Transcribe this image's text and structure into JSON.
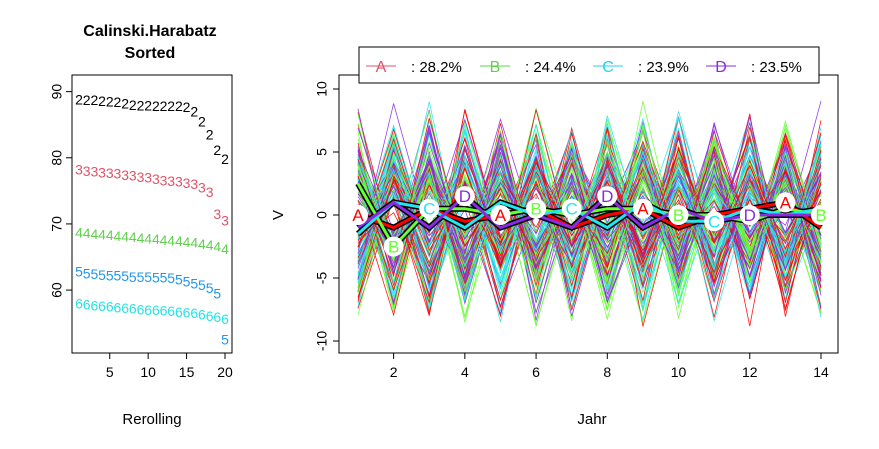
{
  "left_chart": {
    "title_line1": "Calinski.Harabatz",
    "title_line2": "Sorted",
    "xlabel": "Rerolling",
    "x_ticks": [
      "5",
      "10",
      "15",
      "20"
    ],
    "y_ticks": [
      "60",
      "70",
      "80",
      "90"
    ]
  },
  "right_chart": {
    "xlabel": "Jahr",
    "ylabel": "V",
    "x_ticks": [
      "2",
      "4",
      "6",
      "8",
      "10",
      "12",
      "14"
    ],
    "y_ticks": [
      "-10",
      "-5",
      "0",
      "5",
      "10"
    ],
    "legend": [
      {
        "key": "A",
        "label": ": 28.2%",
        "color": "#DF536B"
      },
      {
        "key": "B",
        "label": ": 24.4%",
        "color": "#61D04F"
      },
      {
        "key": "C",
        "label": ": 23.9%",
        "color": "#22D3EE"
      },
      {
        "key": "D",
        "label": ": 23.5%",
        "color": "#8A2BE2"
      }
    ]
  },
  "chart_data": [
    {
      "type": "scatter",
      "title": "Calinski.Harabatz Sorted",
      "xlabel": "Rerolling",
      "ylabel": "",
      "xlim": [
        1,
        20
      ],
      "ylim": [
        52,
        91
      ],
      "series": [
        {
          "marker": "2",
          "color": "#000000",
          "x": [
            1,
            2,
            3,
            4,
            5,
            6,
            7,
            8,
            9,
            10,
            11,
            12,
            13,
            14,
            15,
            16,
            17,
            18,
            19,
            20
          ],
          "values": [
            88.8,
            88.7,
            88.7,
            88.6,
            88.5,
            88.4,
            88.2,
            88.0,
            87.9,
            87.9,
            87.8,
            87.8,
            87.8,
            87.8,
            87.7,
            87.0,
            85.5,
            83.5,
            81.2,
            79.8
          ]
        },
        {
          "marker": "3",
          "color": "#DF536B",
          "x": [
            1,
            2,
            3,
            4,
            5,
            6,
            7,
            8,
            9,
            10,
            11,
            12,
            13,
            14,
            15,
            16,
            17,
            18,
            19,
            20
          ],
          "values": [
            78.2,
            78.0,
            77.9,
            77.8,
            77.7,
            77.6,
            77.4,
            77.3,
            77.1,
            77.0,
            76.8,
            76.6,
            76.5,
            76.4,
            76.2,
            76.0,
            75.5,
            74.8,
            71.5,
            70.5
          ]
        },
        {
          "marker": "4",
          "color": "#61D04F",
          "x": [
            1,
            2,
            3,
            4,
            5,
            6,
            7,
            8,
            9,
            10,
            11,
            12,
            13,
            14,
            15,
            16,
            17,
            18,
            19,
            20
          ],
          "values": [
            68.7,
            68.6,
            68.5,
            68.4,
            68.3,
            68.2,
            68.1,
            68.0,
            67.9,
            67.8,
            67.7,
            67.6,
            67.5,
            67.4,
            67.3,
            67.2,
            67.0,
            66.8,
            66.6,
            66.2
          ]
        },
        {
          "marker": "5",
          "color": "#2297E6",
          "x": [
            1,
            2,
            3,
            4,
            5,
            6,
            7,
            8,
            9,
            10,
            11,
            12,
            13,
            14,
            15,
            16,
            17,
            18,
            19,
            20
          ],
          "values": [
            62.8,
            62.5,
            62.4,
            62.3,
            62.2,
            62.2,
            62.1,
            62.0,
            62.0,
            62.0,
            61.9,
            61.9,
            61.8,
            61.6,
            61.3,
            61.0,
            60.8,
            60.3,
            59.5,
            52.5
          ]
        },
        {
          "marker": "6",
          "color": "#28E2E5",
          "x": [
            1,
            2,
            3,
            4,
            5,
            6,
            7,
            8,
            9,
            10,
            11,
            12,
            13,
            14,
            15,
            16,
            17,
            18,
            19,
            20
          ],
          "values": [
            58.0,
            57.8,
            57.7,
            57.6,
            57.5,
            57.4,
            57.3,
            57.2,
            57.1,
            57.0,
            57.0,
            56.9,
            56.8,
            56.7,
            56.6,
            56.5,
            56.3,
            56.1,
            55.9,
            55.6
          ]
        }
      ]
    },
    {
      "type": "line",
      "xlabel": "Jahr",
      "ylabel": "V",
      "xlim": [
        1,
        14
      ],
      "ylim": [
        -10,
        10
      ],
      "series": [
        {
          "name": "A",
          "color": "#FF0000",
          "x": [
            1,
            2,
            3,
            4,
            5,
            6,
            7,
            8,
            9,
            10,
            11,
            12,
            13,
            14
          ],
          "values": [
            0,
            -1,
            0.5,
            -0.5,
            0,
            0.5,
            -1,
            0,
            0.5,
            -1,
            0,
            0.5,
            1,
            -1
          ]
        },
        {
          "name": "B",
          "color": "#66FF33",
          "x": [
            1,
            2,
            3,
            4,
            5,
            6,
            7,
            8,
            9,
            10,
            11,
            12,
            13,
            14
          ],
          "values": [
            2.5,
            -2.5,
            0.5,
            0.5,
            0,
            0.5,
            0,
            0.5,
            0.5,
            0,
            0,
            -0.5,
            0.5,
            0
          ]
        },
        {
          "name": "C",
          "color": "#22E5F0",
          "x": [
            1,
            2,
            3,
            4,
            5,
            6,
            7,
            8,
            9,
            10,
            11,
            12,
            13,
            14
          ],
          "values": [
            -1.5,
            1,
            0.5,
            -1,
            1,
            0,
            0.5,
            -1,
            1,
            -0.5,
            -0.5,
            0.5,
            0,
            0.5
          ]
        },
        {
          "name": "D",
          "color": "#8A2BE2",
          "x": [
            1,
            2,
            3,
            4,
            5,
            6,
            7,
            8,
            9,
            10,
            11,
            12,
            13,
            14
          ],
          "values": [
            -1,
            1,
            -1,
            1.5,
            -1,
            0,
            -1,
            1.5,
            -1,
            0.5,
            -0.5,
            0,
            0,
            0
          ]
        }
      ]
    }
  ]
}
